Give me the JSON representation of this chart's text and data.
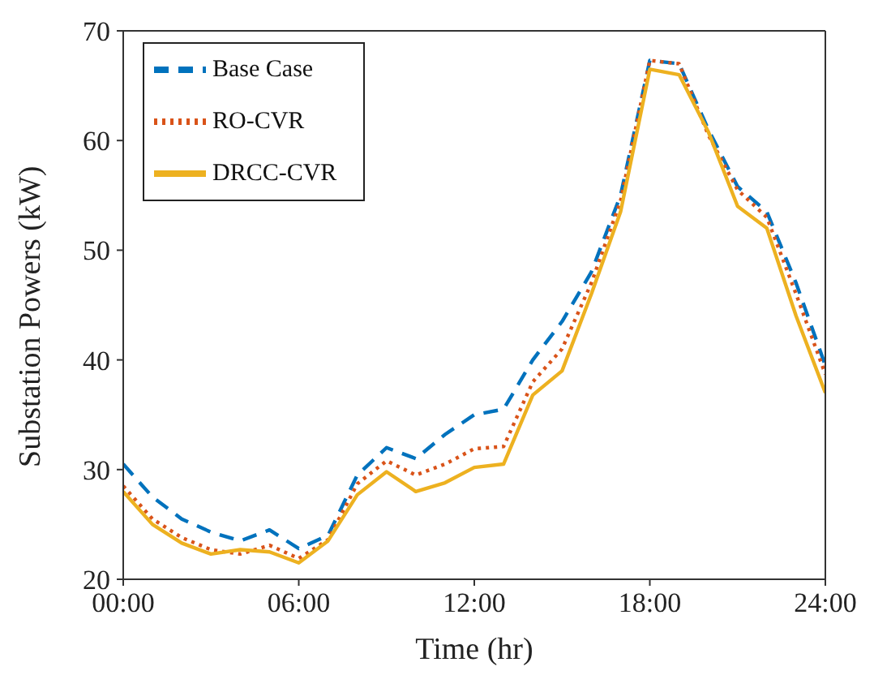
{
  "chart_data": {
    "type": "line",
    "xlabel": "Time (hr)",
    "ylabel": "Substation Powers (kW)",
    "x": [
      0,
      1,
      2,
      3,
      4,
      5,
      6,
      7,
      8,
      9,
      10,
      11,
      12,
      13,
      14,
      15,
      16,
      17,
      18,
      19,
      20,
      21,
      22,
      23,
      24
    ],
    "xlim": [
      0,
      24
    ],
    "xticks": [
      {
        "value": 0,
        "label": "00:00"
      },
      {
        "value": 6,
        "label": "06:00"
      },
      {
        "value": 12,
        "label": "12:00"
      },
      {
        "value": 18,
        "label": "18:00"
      },
      {
        "value": 24,
        "label": "24:00"
      }
    ],
    "ylim": [
      20,
      70
    ],
    "yticks": [
      20,
      30,
      40,
      50,
      60,
      70
    ],
    "grid": false,
    "legend": "top left",
    "marker": "none",
    "series": [
      {
        "name": "Base Case",
        "color": "#0072bd",
        "line_style": "dashed",
        "values": [
          30.5,
          27.5,
          25.5,
          24.3,
          23.5,
          24.5,
          22.8,
          24,
          29.5,
          32,
          31,
          33.2,
          35,
          35.5,
          40,
          43.5,
          48,
          55,
          67.3,
          67,
          61,
          55.8,
          53.5,
          47,
          39.5
        ]
      },
      {
        "name": "RO-CVR",
        "color": "#d95319",
        "line_style": "dotted",
        "values": [
          28.5,
          25.5,
          23.8,
          22.7,
          22.3,
          23.1,
          21.9,
          23.6,
          28.7,
          30.8,
          29.5,
          30.5,
          31.9,
          32.1,
          38,
          41,
          47,
          54.5,
          67.3,
          67,
          60.5,
          55.5,
          53,
          46,
          38.7
        ]
      },
      {
        "name": "DRCC-CVR",
        "color": "#edb120",
        "line_style": "solid",
        "values": [
          28,
          25,
          23.3,
          22.3,
          22.7,
          22.5,
          21.5,
          23.5,
          27.7,
          29.8,
          28,
          28.8,
          30.2,
          30.5,
          36.8,
          39,
          46,
          53.5,
          66.5,
          66,
          60.8,
          54,
          52,
          44,
          37
        ]
      }
    ]
  }
}
